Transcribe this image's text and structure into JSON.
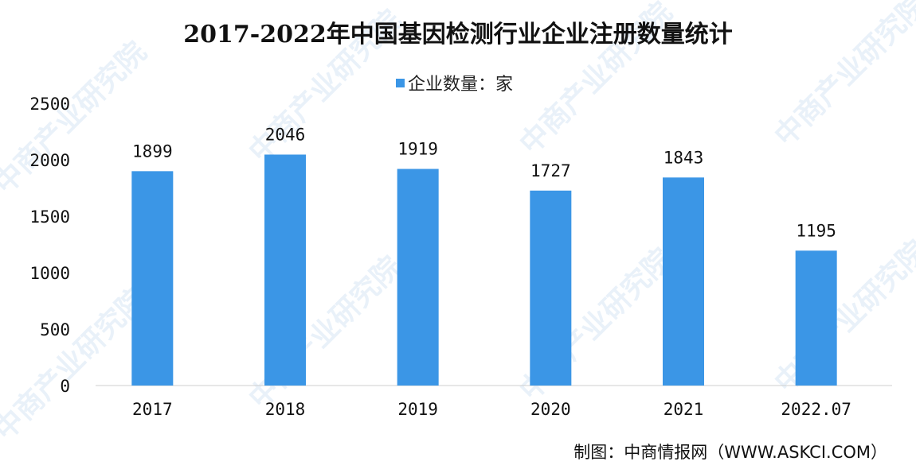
{
  "title": "2017-2022年中国基因检测行业企业注册数量统计",
  "legend": {
    "label": "企业数量：家",
    "color": "#3b96e6"
  },
  "source": "制图：中商情报网（WWW.ASKCI.COM）",
  "watermark_text": "中商产业研究院",
  "chart_data": {
    "type": "bar",
    "title": "2017-2022年中国基因检测行业企业注册数量统计",
    "categories": [
      "2017",
      "2018",
      "2019",
      "2020",
      "2021",
      "2022.07"
    ],
    "series": [
      {
        "name": "企业数量：家",
        "values": [
          1899,
          2046,
          1919,
          1727,
          1843,
          1195
        ]
      }
    ],
    "ylim": [
      0,
      2500
    ],
    "yticks": [
      0,
      500,
      1000,
      1500,
      2000,
      2500
    ],
    "grid": false,
    "legend_position": "top-center",
    "bar_color": "#3b96e6",
    "data_labels": true
  }
}
